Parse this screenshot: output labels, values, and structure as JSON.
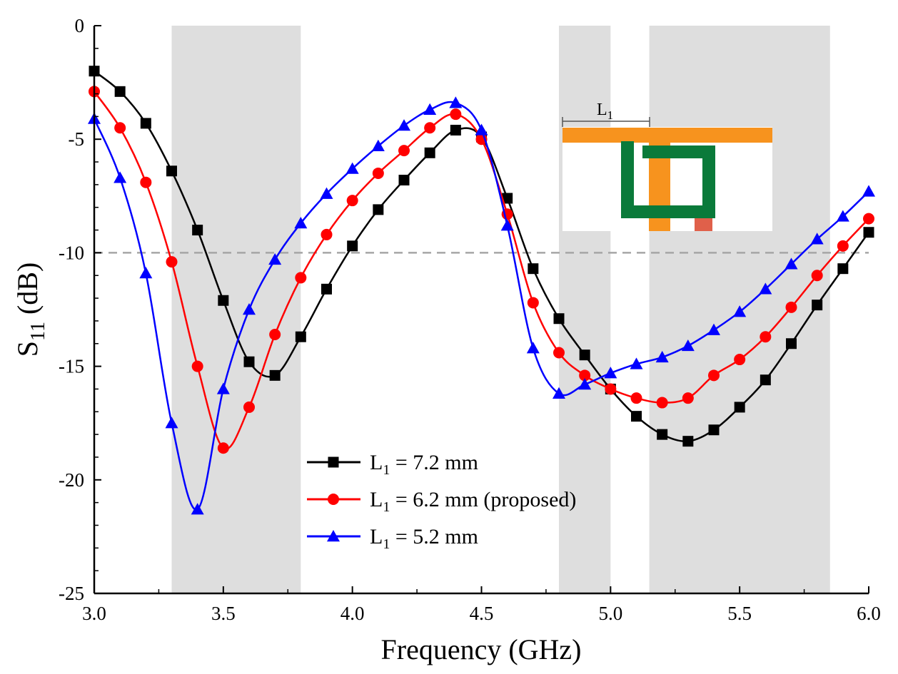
{
  "chart_data": {
    "type": "line",
    "title": "",
    "xlabel": "Frequency (GHz)",
    "ylabel": {
      "main": "S",
      "sub": "11",
      "unit": " (dB)"
    },
    "xlim": [
      3.0,
      6.0
    ],
    "ylim": [
      -25,
      0
    ],
    "xticks": [
      "3.0",
      "3.5",
      "4.0",
      "4.5",
      "5.0",
      "5.5",
      "6.0"
    ],
    "yticks": [
      "0",
      "-5",
      "-10",
      "-15",
      "-20",
      "-25"
    ],
    "grid": false,
    "reference_line": {
      "y": -10,
      "style": "dashed",
      "color": "#a6a6a6"
    },
    "shaded_bands": [
      [
        3.3,
        3.8
      ],
      [
        4.8,
        5.0
      ],
      [
        5.15,
        5.85
      ]
    ],
    "shade_color": "#dedede",
    "legend": {
      "position": "bottom-center",
      "entries": [
        {
          "main": "L",
          "sub": "1",
          "rest": " = 7.2 mm"
        },
        {
          "main": "L",
          "sub": "1",
          "rest": " = 6.2 mm (proposed)"
        },
        {
          "main": "L",
          "sub": "1",
          "rest": " = 5.2 mm"
        }
      ]
    },
    "series": [
      {
        "name": "L1 = 7.2 mm",
        "color": "#000000",
        "marker": "square",
        "x": [
          3.0,
          3.1,
          3.2,
          3.3,
          3.4,
          3.5,
          3.6,
          3.7,
          3.8,
          3.9,
          4.0,
          4.1,
          4.2,
          4.3,
          4.4,
          4.5,
          4.6,
          4.7,
          4.8,
          4.9,
          5.0,
          5.1,
          5.2,
          5.3,
          5.4,
          5.5,
          5.6,
          5.7,
          5.8,
          5.9,
          6.0
        ],
        "y": [
          -2.0,
          -2.9,
          -4.3,
          -6.4,
          -9.0,
          -12.1,
          -14.8,
          -15.4,
          -13.7,
          -11.6,
          -9.7,
          -8.1,
          -6.8,
          -5.6,
          -4.6,
          -4.9,
          -7.6,
          -10.7,
          -12.9,
          -14.5,
          -16.0,
          -17.2,
          -18.0,
          -18.3,
          -17.8,
          -16.8,
          -15.6,
          -14.0,
          -12.3,
          -10.7,
          -9.1
        ]
      },
      {
        "name": "L1 = 6.2 mm (proposed)",
        "color": "#ff0000",
        "marker": "circle",
        "x": [
          3.0,
          3.1,
          3.2,
          3.3,
          3.4,
          3.5,
          3.6,
          3.7,
          3.8,
          3.9,
          4.0,
          4.1,
          4.2,
          4.3,
          4.4,
          4.5,
          4.6,
          4.7,
          4.8,
          4.9,
          5.0,
          5.1,
          5.2,
          5.3,
          5.4,
          5.5,
          5.6,
          5.7,
          5.8,
          5.9,
          6.0
        ],
        "y": [
          -2.9,
          -4.5,
          -6.9,
          -10.4,
          -15.0,
          -18.6,
          -16.8,
          -13.6,
          -11.1,
          -9.2,
          -7.7,
          -6.5,
          -5.5,
          -4.5,
          -3.9,
          -5.0,
          -8.3,
          -12.2,
          -14.4,
          -15.4,
          -16.0,
          -16.4,
          -16.6,
          -16.4,
          -15.4,
          -14.7,
          -13.7,
          -12.4,
          -11.0,
          -9.7,
          -8.5
        ]
      },
      {
        "name": "L1 = 5.2 mm",
        "color": "#0000ff",
        "marker": "triangle",
        "x": [
          3.0,
          3.1,
          3.2,
          3.3,
          3.4,
          3.5,
          3.6,
          3.7,
          3.8,
          3.9,
          4.0,
          4.1,
          4.2,
          4.3,
          4.4,
          4.5,
          4.6,
          4.7,
          4.8,
          4.9,
          5.0,
          5.1,
          5.2,
          5.3,
          5.4,
          5.5,
          5.6,
          5.7,
          5.8,
          5.9,
          6.0
        ],
        "y": [
          -4.1,
          -6.7,
          -10.9,
          -17.5,
          -21.3,
          -16.0,
          -12.5,
          -10.3,
          -8.7,
          -7.4,
          -6.3,
          -5.3,
          -4.4,
          -3.7,
          -3.4,
          -4.6,
          -8.8,
          -14.2,
          -16.2,
          -15.8,
          -15.3,
          -14.9,
          -14.6,
          -14.1,
          -13.4,
          -12.6,
          -11.6,
          -10.5,
          -9.4,
          -8.4,
          -7.3
        ]
      }
    ],
    "inset": {
      "label": {
        "main": "L",
        "sub": "1"
      },
      "colors": {
        "feed": "#f7931e",
        "slot": "#0a7a3a",
        "port": "#e0604a"
      }
    }
  }
}
